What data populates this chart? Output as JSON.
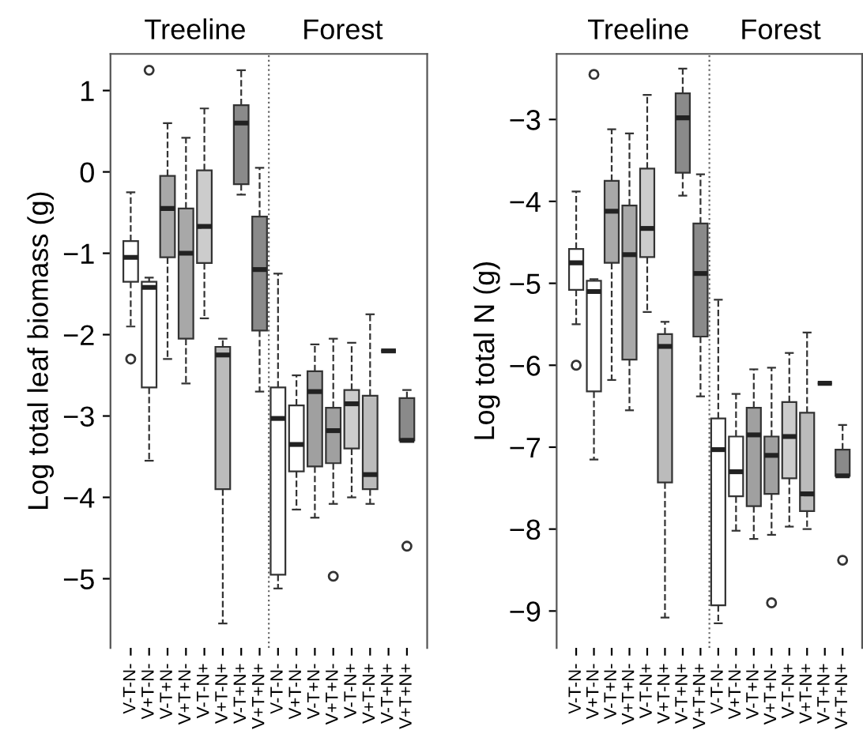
{
  "chart_data": [
    {
      "type": "box",
      "ylabel": "Log total leaf biomass (g)",
      "annotations": [
        "Treeline",
        "Forest"
      ],
      "categories": [
        "V-T-N-",
        "V+T-N-",
        "V-T+N-",
        "V+T+N-",
        "V-T-N+",
        "V+T-N+",
        "V-T+N+",
        "V+T+N+",
        "V-T-N-",
        "V+T-N-",
        "V-T+N-",
        "V+T+N-",
        "V-T-N+",
        "V+T-N+",
        "V-T+N+",
        "V+T+N+"
      ],
      "colors": [
        "#ffffff",
        "#ffffff",
        "#a8a8a8",
        "#a8a8a8",
        "#cccccc",
        "#bbbbbb",
        "#8a8a8a",
        "#8a8a8a",
        "#ffffff",
        "#ffffff",
        "#a0a0a0",
        "#a0a0a0",
        "#cccccc",
        "#bbbbbb",
        "#333333",
        "#8a8a8a"
      ],
      "boxes": [
        {
          "low": -1.9,
          "q1": -1.35,
          "median": -1.05,
          "q3": -0.85,
          "high": -0.25,
          "outliers": [
            -2.3
          ]
        },
        {
          "low": -3.55,
          "q1": -2.65,
          "median": -1.42,
          "q3": -1.35,
          "high": -1.3,
          "outliers": [
            1.25
          ]
        },
        {
          "low": -2.3,
          "q1": -1.05,
          "median": -0.45,
          "q3": -0.05,
          "high": 0.6
        },
        {
          "low": -2.6,
          "q1": -2.05,
          "median": -1.0,
          "q3": -0.45,
          "high": 0.42
        },
        {
          "low": -1.8,
          "q1": -1.12,
          "median": -0.67,
          "q3": 0.02,
          "high": 0.78
        },
        {
          "low": -5.55,
          "q1": -3.9,
          "median": -2.25,
          "q3": -2.15,
          "high": -2.05
        },
        {
          "low": -0.28,
          "q1": -0.15,
          "median": 0.6,
          "q3": 0.82,
          "high": 1.25
        },
        {
          "low": -2.7,
          "q1": -1.95,
          "median": -1.2,
          "q3": -0.55,
          "high": 0.05
        },
        {
          "low": -5.12,
          "q1": -4.95,
          "median": -3.03,
          "q3": -2.65,
          "high": -1.25
        },
        {
          "low": -4.15,
          "q1": -3.68,
          "median": -3.35,
          "q3": -2.87,
          "high": -2.5
        },
        {
          "low": -4.25,
          "q1": -3.62,
          "median": -2.7,
          "q3": -2.45,
          "high": -2.12
        },
        {
          "low": -4.08,
          "q1": -3.58,
          "median": -3.18,
          "q3": -2.9,
          "high": -2.05,
          "outliers": [
            -4.97
          ]
        },
        {
          "low": -4.0,
          "q1": -3.4,
          "median": -2.85,
          "q3": -2.68,
          "high": -2.1
        },
        {
          "low": -4.08,
          "q1": -3.9,
          "median": -3.72,
          "q3": -2.75,
          "high": -1.75
        },
        {
          "low": -2.2,
          "q1": -2.2,
          "median": -2.2,
          "q3": -2.2,
          "high": -2.2
        },
        {
          "low": -3.3,
          "q1": -3.3,
          "median": -3.3,
          "q3": -2.78,
          "high": -2.68,
          "outliers": [
            -4.6
          ]
        }
      ],
      "ylim": [
        -5.85,
        1.45
      ],
      "yticks": [
        {
          "value": -5,
          "label": "−5"
        },
        {
          "value": -4,
          "label": "−4"
        },
        {
          "value": -3,
          "label": "−3"
        },
        {
          "value": -2,
          "label": "−2"
        },
        {
          "value": -1,
          "label": "−1"
        },
        0,
        1
      ]
    },
    {
      "type": "box",
      "ylabel": "Log total N (g)",
      "annotations": [
        "Treeline",
        "Forest"
      ],
      "categories": [
        "V-T-N-",
        "V+T-N-",
        "V-T+N-",
        "V+T+N-",
        "V-T-N+",
        "V+T-N+",
        "V-T+N+",
        "V+T+N+",
        "V-T-N-",
        "V+T-N-",
        "V-T+N-",
        "V+T+N-",
        "V-T-N+",
        "V+T-N+",
        "V-T+N+",
        "V+T+N+"
      ],
      "colors": [
        "#ffffff",
        "#ffffff",
        "#a8a8a8",
        "#a8a8a8",
        "#cccccc",
        "#bbbbbb",
        "#8a8a8a",
        "#8a8a8a",
        "#ffffff",
        "#ffffff",
        "#a0a0a0",
        "#a0a0a0",
        "#cccccc",
        "#bbbbbb",
        "#333333",
        "#8a8a8a"
      ],
      "boxes": [
        {
          "low": -5.5,
          "q1": -5.08,
          "median": -4.75,
          "q3": -4.58,
          "high": -3.88,
          "outliers": [
            -6.0
          ]
        },
        {
          "low": -7.15,
          "q1": -6.32,
          "median": -5.1,
          "q3": -4.97,
          "high": -4.95,
          "outliers": [
            -2.45
          ]
        },
        {
          "low": -6.18,
          "q1": -4.75,
          "median": -4.12,
          "q3": -3.75,
          "high": -3.12
        },
        {
          "low": -6.55,
          "q1": -5.93,
          "median": -4.65,
          "q3": -4.05,
          "high": -3.17
        },
        {
          "low": -5.35,
          "q1": -4.68,
          "median": -4.33,
          "q3": -3.6,
          "high": -2.7
        },
        {
          "low": -9.08,
          "q1": -7.43,
          "median": -5.77,
          "q3": -5.62,
          "high": -5.47
        },
        {
          "low": -3.93,
          "q1": -3.65,
          "median": -2.98,
          "q3": -2.68,
          "high": -2.38
        },
        {
          "low": -6.38,
          "q1": -5.65,
          "median": -4.88,
          "q3": -4.27,
          "high": -3.67
        },
        {
          "low": -9.15,
          "q1": -8.93,
          "median": -7.03,
          "q3": -6.65,
          "high": -5.2
        },
        {
          "low": -8.02,
          "q1": -7.6,
          "median": -7.3,
          "q3": -6.87,
          "high": -6.35
        },
        {
          "low": -8.12,
          "q1": -7.72,
          "median": -6.85,
          "q3": -6.52,
          "high": -6.05
        },
        {
          "low": -8.07,
          "q1": -7.57,
          "median": -7.1,
          "q3": -6.87,
          "high": -6.03,
          "outliers": [
            -8.9
          ]
        },
        {
          "low": -7.97,
          "q1": -7.38,
          "median": -6.87,
          "q3": -6.45,
          "high": -5.85
        },
        {
          "low": -8.0,
          "q1": -7.78,
          "median": -7.57,
          "q3": -6.58,
          "high": -5.6
        },
        {
          "low": -6.22,
          "q1": -6.22,
          "median": -6.22,
          "q3": -6.22,
          "high": -6.22
        },
        {
          "low": -7.35,
          "q1": -7.35,
          "median": -7.35,
          "q3": -7.03,
          "high": -6.73,
          "outliers": [
            -8.38
          ]
        }
      ],
      "ylim": [
        -9.45,
        -2.2
      ],
      "yticks": [
        {
          "value": -9,
          "label": "−9"
        },
        {
          "value": -8,
          "label": "−8"
        },
        {
          "value": -7,
          "label": "−7"
        },
        {
          "value": -6,
          "label": "−6"
        },
        {
          "value": -5,
          "label": "−5"
        },
        {
          "value": -4,
          "label": "−4"
        },
        {
          "value": -3,
          "label": "−3"
        }
      ]
    }
  ]
}
